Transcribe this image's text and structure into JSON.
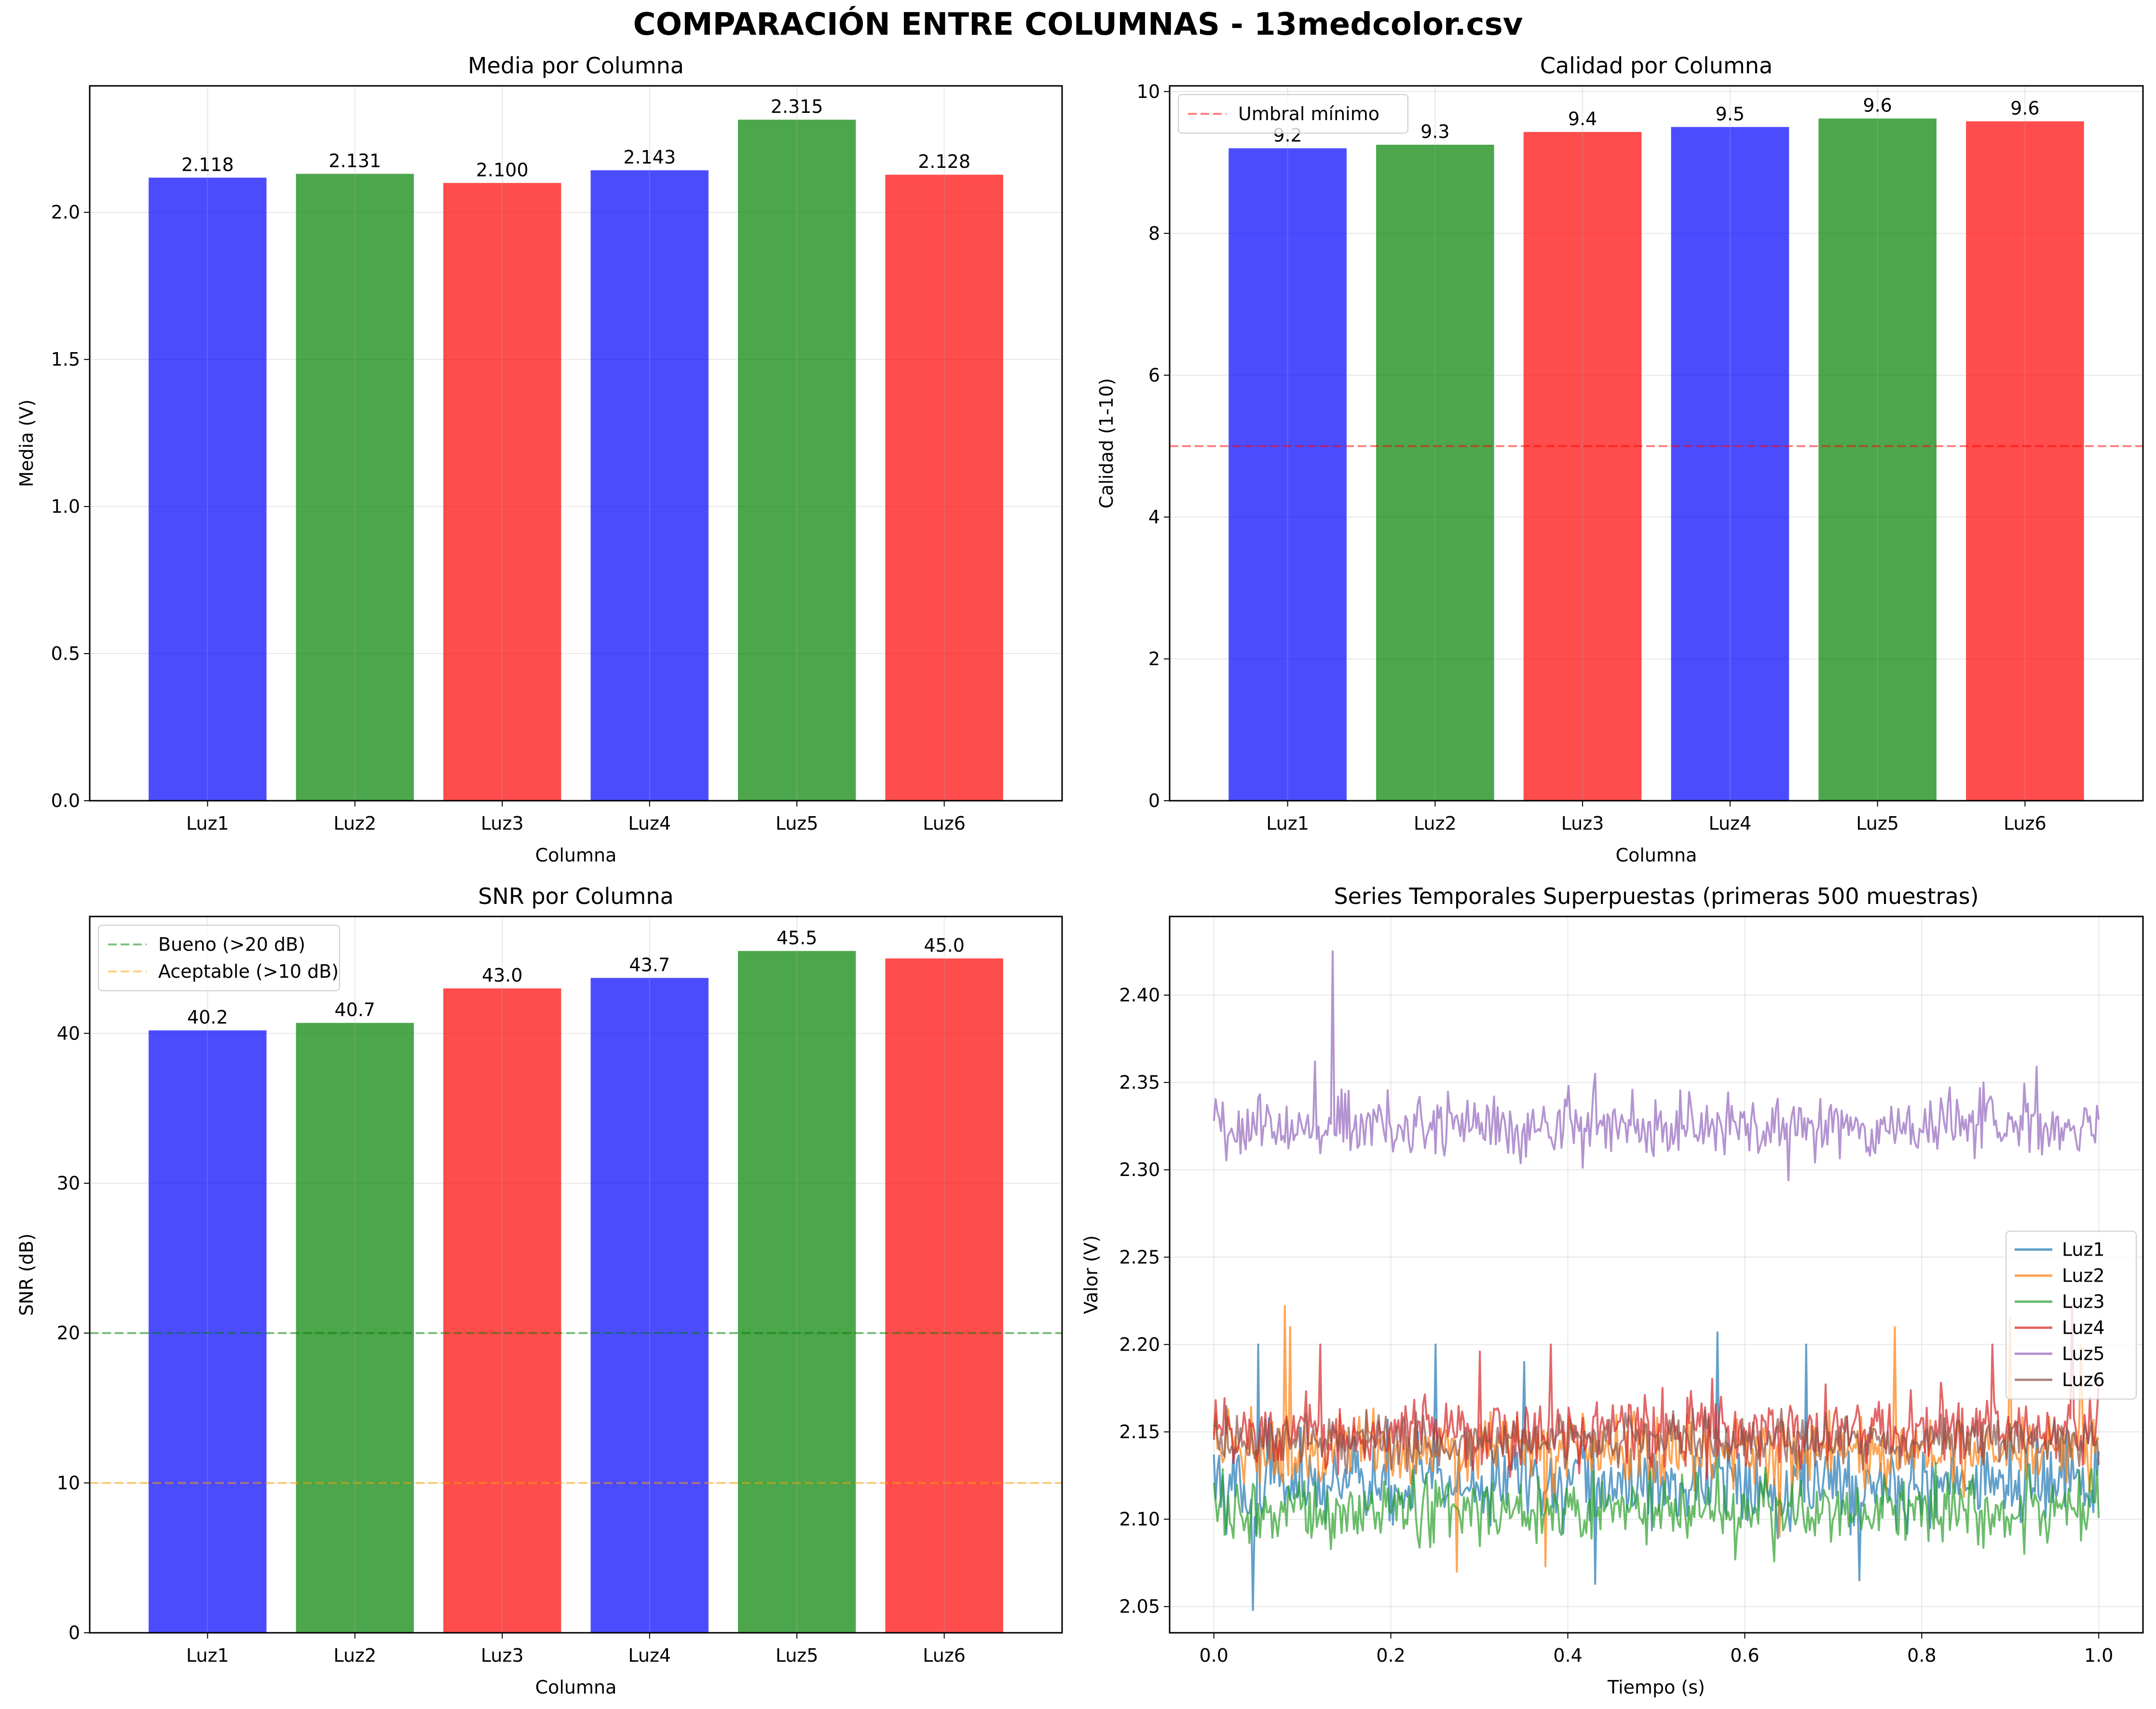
{
  "figure_title": "COMPARACIÓN ENTRE COLUMNAS - 13medcolor.csv",
  "colors": {
    "blue": "#0000ff",
    "green": "#008000",
    "red": "#ff0000",
    "orange": "#ffa500",
    "series": [
      "#1f77b4",
      "#ff7f0e",
      "#2ca02c",
      "#d62728",
      "#9467bd",
      "#8c564b"
    ]
  },
  "chart_data": [
    {
      "type": "bar",
      "title": "Media por Columna",
      "xlabel": "Columna",
      "ylabel": "Media (V)",
      "categories": [
        "Luz1",
        "Luz2",
        "Luz3",
        "Luz4",
        "Luz5",
        "Luz6"
      ],
      "values": [
        2.118,
        2.131,
        2.1,
        2.143,
        2.315,
        2.128
      ],
      "value_labels": [
        "2.118",
        "2.131",
        "2.100",
        "2.143",
        "2.315",
        "2.128"
      ],
      "bar_colors": [
        "blue",
        "green",
        "red",
        "blue",
        "green",
        "red"
      ],
      "ylim": [
        0,
        2.43
      ],
      "yticks": [
        0.0,
        0.5,
        1.0,
        1.5,
        2.0
      ],
      "ytick_labels": [
        "0.0",
        "0.5",
        "1.0",
        "1.5",
        "2.0"
      ],
      "grid": true
    },
    {
      "type": "bar",
      "title": "Calidad por Columna",
      "xlabel": "Columna",
      "ylabel": "Calidad (1-10)",
      "categories": [
        "Luz1",
        "Luz2",
        "Luz3",
        "Luz4",
        "Luz5",
        "Luz6"
      ],
      "values": [
        9.2,
        9.25,
        9.43,
        9.5,
        9.62,
        9.58
      ],
      "value_labels": [
        "9.2",
        "9.3",
        "9.4",
        "9.5",
        "9.6",
        "9.6"
      ],
      "bar_colors": [
        "blue",
        "green",
        "red",
        "blue",
        "green",
        "red"
      ],
      "ylim": [
        0,
        10.08
      ],
      "yticks": [
        0,
        2,
        4,
        6,
        8,
        10
      ],
      "ytick_labels": [
        "0",
        "2",
        "4",
        "6",
        "8",
        "10"
      ],
      "hlines": [
        {
          "y": 5,
          "color": "red",
          "label": "Umbral mínimo"
        }
      ],
      "legend_position": "top-left",
      "grid": true
    },
    {
      "type": "bar",
      "title": "SNR por Columna",
      "xlabel": "Columna",
      "ylabel": "SNR (dB)",
      "categories": [
        "Luz1",
        "Luz2",
        "Luz3",
        "Luz4",
        "Luz5",
        "Luz6"
      ],
      "values": [
        40.2,
        40.7,
        43.0,
        43.7,
        45.5,
        45.0
      ],
      "value_labels": [
        "40.2",
        "40.7",
        "43.0",
        "43.7",
        "45.5",
        "45.0"
      ],
      "bar_colors": [
        "blue",
        "green",
        "red",
        "blue",
        "green",
        "red"
      ],
      "ylim": [
        0,
        47.8
      ],
      "yticks": [
        0,
        10,
        20,
        30,
        40
      ],
      "ytick_labels": [
        "0",
        "10",
        "20",
        "30",
        "40"
      ],
      "hlines": [
        {
          "y": 20,
          "color": "green",
          "label": "Bueno (>20 dB)"
        },
        {
          "y": 10,
          "color": "orange",
          "label": "Aceptable (>10 dB)"
        }
      ],
      "legend_position": "top-left",
      "grid": true
    },
    {
      "type": "line",
      "title": "Series Temporales Superpuestas (primeras 500 muestras)",
      "xlabel": "Tiempo (s)",
      "ylabel": "Valor (V)",
      "xlim": [
        -0.05,
        1.05
      ],
      "ylim": [
        2.035,
        2.445
      ],
      "xticks": [
        0.0,
        0.2,
        0.4,
        0.6,
        0.8,
        1.0
      ],
      "xtick_labels": [
        "0.0",
        "0.2",
        "0.4",
        "0.6",
        "0.8",
        "1.0"
      ],
      "yticks": [
        2.05,
        2.1,
        2.15,
        2.2,
        2.25,
        2.3,
        2.35,
        2.4
      ],
      "ytick_labels": [
        "2.05",
        "2.10",
        "2.15",
        "2.20",
        "2.25",
        "2.30",
        "2.35",
        "2.40"
      ],
      "legend_position": "center-right",
      "grid": true,
      "samples": 500,
      "series": [
        {
          "name": "Luz1",
          "mean": 2.12,
          "noise": 0.012,
          "spikes": [
            [
              0.045,
              2.048
            ],
            [
              0.05,
              2.2
            ],
            [
              0.25,
              2.2
            ],
            [
              0.35,
              2.19
            ],
            [
              0.43,
              2.063
            ],
            [
              0.57,
              2.207
            ],
            [
              0.67,
              2.2
            ],
            [
              0.73,
              2.065
            ]
          ]
        },
        {
          "name": "Luz2",
          "mean": 2.14,
          "noise": 0.01,
          "spikes": [
            [
              0.08,
              2.222
            ],
            [
              0.087,
              2.21
            ],
            [
              0.275,
              2.07
            ],
            [
              0.375,
              2.073
            ],
            [
              0.64,
              2.09
            ],
            [
              0.77,
              2.21
            ],
            [
              0.9,
              2.215
            ],
            [
              0.98,
              2.2
            ]
          ]
        },
        {
          "name": "Luz3",
          "mean": 2.105,
          "noise": 0.01,
          "spikes": [
            [
              0.57,
              2.135
            ],
            [
              0.59,
              2.077
            ]
          ]
        },
        {
          "name": "Luz4",
          "mean": 2.15,
          "noise": 0.01,
          "spikes": [
            [
              0.12,
              2.2
            ],
            [
              0.3,
              2.196
            ],
            [
              0.38,
              2.2
            ],
            [
              0.88,
              2.2
            ],
            [
              0.97,
              2.222
            ]
          ]
        },
        {
          "name": "Luz5",
          "mean": 2.325,
          "noise": 0.009,
          "spikes": [
            [
              0.135,
              2.425
            ],
            [
              0.114,
              2.362
            ],
            [
              0.43,
              2.355
            ],
            [
              0.65,
              2.294
            ],
            [
              0.87,
              2.35
            ],
            [
              0.93,
              2.359
            ]
          ]
        },
        {
          "name": "Luz6",
          "mean": 2.145,
          "noise": 0.007,
          "spikes": []
        }
      ]
    }
  ]
}
